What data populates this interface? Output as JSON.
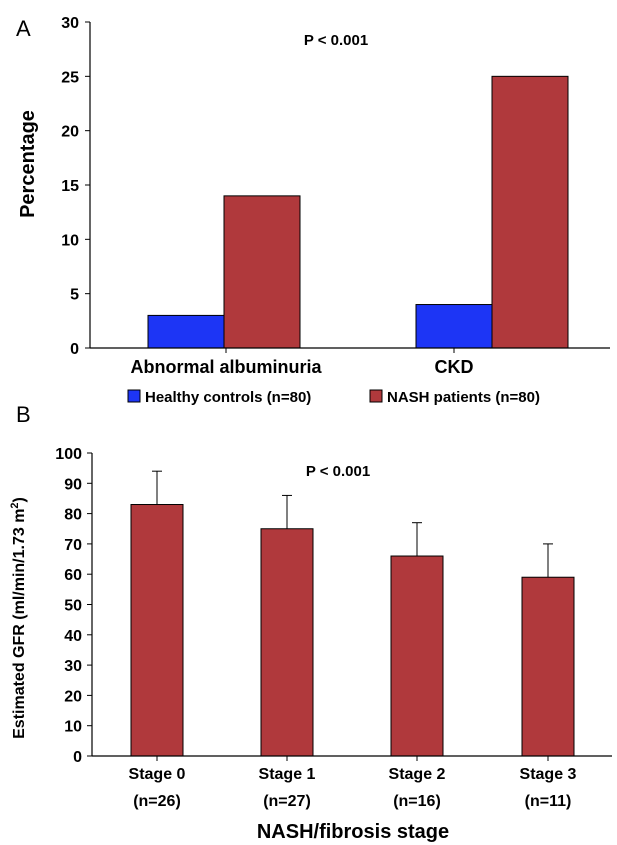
{
  "colors": {
    "healthy": "#1d35f5",
    "nash": "#b0393c",
    "axis": "#000000"
  },
  "chart_data": [
    {
      "panel": "A",
      "type": "bar",
      "annotation": "P < 0.001",
      "ylabel": "Percentage",
      "xlabel": "",
      "ylim": [
        0,
        30
      ],
      "yticks": [
        0,
        5,
        10,
        15,
        20,
        25,
        30
      ],
      "categories": [
        "Abnormal albuminuria",
        "CKD"
      ],
      "series": [
        {
          "name": "Healthy controls (n=80)",
          "values": [
            3,
            4
          ]
        },
        {
          "name": "NASH patients (n=80)",
          "values": [
            14,
            25
          ]
        }
      ],
      "legend": "bottom"
    },
    {
      "panel": "B",
      "type": "bar",
      "annotation": "P < 0.001",
      "ylabel_main": "Estimated GFR (ml/min/1.73 m",
      "ylabel_sup": "2",
      "ylabel_close": ")",
      "xlabel": "NASH/fibrosis stage",
      "ylim": [
        0,
        100
      ],
      "yticks": [
        0,
        10,
        20,
        30,
        40,
        50,
        60,
        70,
        80,
        90,
        100
      ],
      "categories": [
        {
          "label": "Stage 0",
          "sub": "(n=26)"
        },
        {
          "label": "Stage 1",
          "sub": "(n=27)"
        },
        {
          "label": "Stage 2",
          "sub": "(n=16)"
        },
        {
          "label": "Stage 3",
          "sub": "(n=11)"
        }
      ],
      "values": [
        83,
        75,
        66,
        59
      ],
      "error_upper": [
        94,
        86,
        77,
        70
      ]
    }
  ]
}
